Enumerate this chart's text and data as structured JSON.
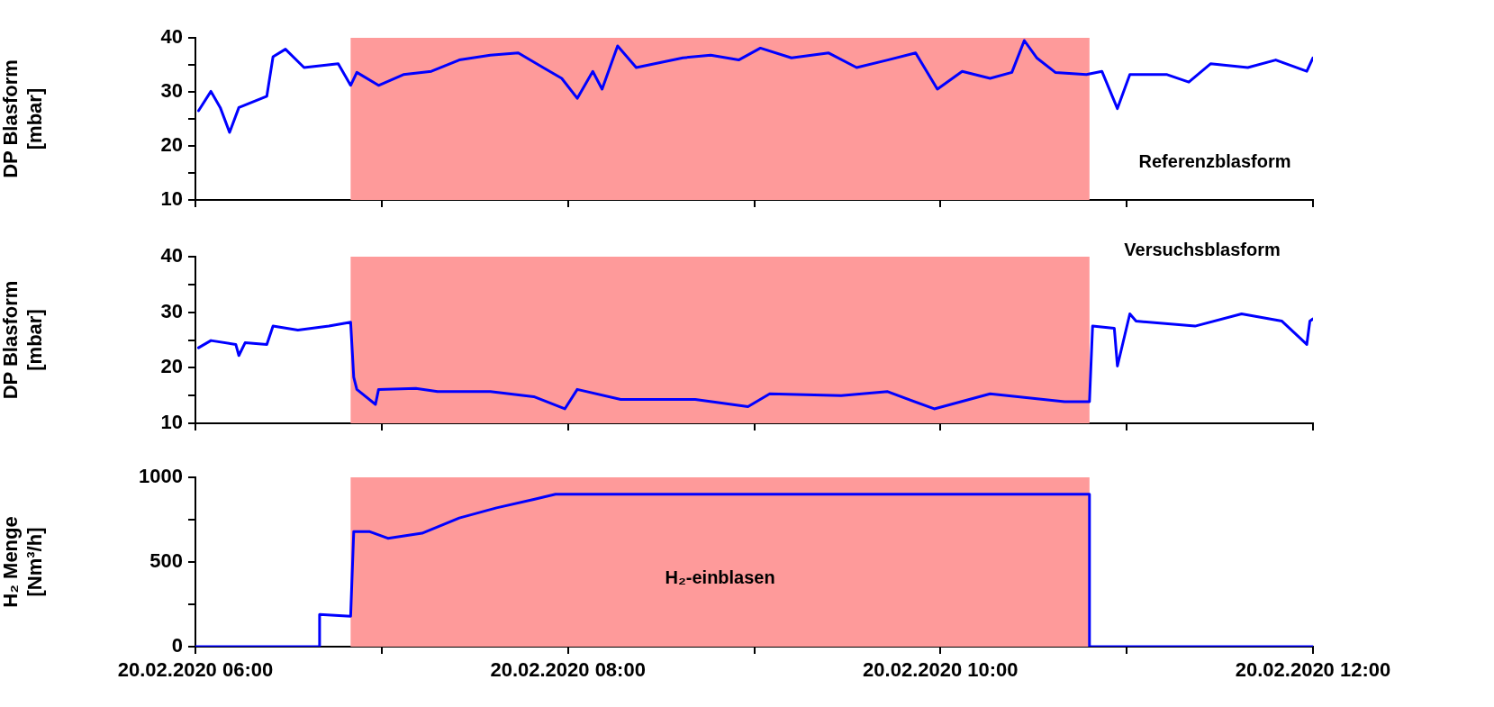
{
  "chart_data": [
    {
      "type": "line",
      "ylabel": "DP Blasform [mbar]",
      "xlim": [
        "2020-02-20T06:00",
        "2020-02-20T12:00"
      ],
      "ylim": [
        10,
        40
      ],
      "marker": "none",
      "grid": false,
      "legend": false,
      "tick_labels": "y",
      "xticks": [
        {
          "value": "2020-02-20T06:00",
          "label": null
        },
        {
          "value": "2020-02-20T07:00",
          "label": null
        },
        {
          "value": "2020-02-20T08:00",
          "label": null
        },
        {
          "value": "2020-02-20T09:00",
          "label": null
        },
        {
          "value": "2020-02-20T10:00",
          "label": null
        },
        {
          "value": "2020-02-20T11:00",
          "label": null
        },
        {
          "value": "2020-02-20T12:00",
          "label": null
        }
      ],
      "yticks": [
        10,
        {
          "value": 15,
          "label": null
        },
        20,
        {
          "value": 25,
          "label": null
        },
        30,
        {
          "value": 35,
          "label": null
        },
        40
      ],
      "bands": [
        {
          "axis": "x",
          "from": "2020-02-20T06:50",
          "to": "2020-02-20T10:48",
          "color": "#fe9a9a"
        }
      ],
      "series": [
        {
          "name": "Referenzblasform",
          "color": "#0000ff",
          "x": [
            "2020-02-20T06:01",
            "2020-02-20T06:05",
            "2020-02-20T06:08",
            "2020-02-20T06:11",
            "2020-02-20T06:14",
            "2020-02-20T06:23",
            "2020-02-20T06:25",
            "2020-02-20T06:29",
            "2020-02-20T06:35",
            "2020-02-20T06:46",
            "2020-02-20T06:50",
            "2020-02-20T06:52",
            "2020-02-20T06:59",
            "2020-02-20T07:07",
            "2020-02-20T07:16",
            "2020-02-20T07:25",
            "2020-02-20T07:35",
            "2020-02-20T07:44",
            "2020-02-20T07:52",
            "2020-02-20T07:58",
            "2020-02-20T08:03",
            "2020-02-20T08:08",
            "2020-02-20T08:11",
            "2020-02-20T08:16",
            "2020-02-20T08:22",
            "2020-02-20T08:37",
            "2020-02-20T08:46",
            "2020-02-20T08:55",
            "2020-02-20T09:02",
            "2020-02-20T09:12",
            "2020-02-20T09:24",
            "2020-02-20T09:33",
            "2020-02-20T09:43",
            "2020-02-20T09:52",
            "2020-02-20T09:59",
            "2020-02-20T10:07",
            "2020-02-20T10:16",
            "2020-02-20T10:23",
            "2020-02-20T10:27",
            "2020-02-20T10:31",
            "2020-02-20T10:37",
            "2020-02-20T10:47",
            "2020-02-20T10:52",
            "2020-02-20T10:57",
            "2020-02-20T11:01",
            "2020-02-20T11:13",
            "2020-02-20T11:20",
            "2020-02-20T11:27",
            "2020-02-20T11:39",
            "2020-02-20T11:48",
            "2020-02-20T11:58",
            "2020-02-20T12:00"
          ],
          "values": [
            26.5,
            30.1,
            27.1,
            22.5,
            27.1,
            29.2,
            36.5,
            37.9,
            34.5,
            35.2,
            31.2,
            33.6,
            31.2,
            33.2,
            33.8,
            35.9,
            36.8,
            37.2,
            34.5,
            32.5,
            28.8,
            33.8,
            30.5,
            38.5,
            34.5,
            36.3,
            36.8,
            35.9,
            38.1,
            36.3,
            37.2,
            34.5,
            35.9,
            37.2,
            30.5,
            33.8,
            32.5,
            33.6,
            39.5,
            36.3,
            33.6,
            33.2,
            33.8,
            26.9,
            33.2,
            33.2,
            31.8,
            35.2,
            34.5,
            35.9,
            33.8,
            36.3
          ]
        }
      ]
    },
    {
      "type": "line",
      "ylabel": "DP Blasform [mbar]",
      "xlim": [
        "2020-02-20T06:00",
        "2020-02-20T12:00"
      ],
      "ylim": [
        10,
        40
      ],
      "marker": "none",
      "grid": false,
      "legend": false,
      "tick_labels": "y",
      "xticks": [
        {
          "value": "2020-02-20T06:00",
          "label": null
        },
        {
          "value": "2020-02-20T07:00",
          "label": null
        },
        {
          "value": "2020-02-20T08:00",
          "label": null
        },
        {
          "value": "2020-02-20T09:00",
          "label": null
        },
        {
          "value": "2020-02-20T10:00",
          "label": null
        },
        {
          "value": "2020-02-20T11:00",
          "label": null
        },
        {
          "value": "2020-02-20T12:00",
          "label": null
        }
      ],
      "yticks": [
        10,
        {
          "value": 15,
          "label": null
        },
        20,
        {
          "value": 25,
          "label": null
        },
        30,
        {
          "value": 35,
          "label": null
        },
        40
      ],
      "bands": [
        {
          "axis": "x",
          "from": "2020-02-20T06:50",
          "to": "2020-02-20T10:48",
          "color": "#fe9a9a"
        }
      ],
      "series": [
        {
          "name": "Versuchsblasform",
          "color": "#0000ff",
          "x": [
            "2020-02-20T06:01",
            "2020-02-20T06:05",
            "2020-02-20T06:13",
            "2020-02-20T06:14",
            "2020-02-20T06:16",
            "2020-02-20T06:23",
            "2020-02-20T06:25",
            "2020-02-20T06:33",
            "2020-02-20T06:43",
            "2020-02-20T06:50",
            "2020-02-20T06:51",
            "2020-02-20T06:52",
            "2020-02-20T06:58",
            "2020-02-20T06:59",
            "2020-02-20T07:11",
            "2020-02-20T07:18",
            "2020-02-20T07:35",
            "2020-02-20T07:49",
            "2020-02-20T07:59",
            "2020-02-20T08:03",
            "2020-02-20T08:17",
            "2020-02-20T08:41",
            "2020-02-20T08:58",
            "2020-02-20T09:05",
            "2020-02-20T09:28",
            "2020-02-20T09:43",
            "2020-02-20T09:58",
            "2020-02-20T10:16",
            "2020-02-20T10:40",
            "2020-02-20T10:48",
            "2020-02-20T10:49",
            "2020-02-20T10:56",
            "2020-02-20T10:57",
            "2020-02-20T11:01",
            "2020-02-20T11:03",
            "2020-02-20T11:22",
            "2020-02-20T11:37",
            "2020-02-20T11:50",
            "2020-02-20T11:58",
            "2020-02-20T11:59",
            "2020-02-20T12:00"
          ],
          "values": [
            23.6,
            24.9,
            24.2,
            22.2,
            24.5,
            24.2,
            27.5,
            26.8,
            27.5,
            28.2,
            18.3,
            16.1,
            13.4,
            16.1,
            16.3,
            15.7,
            15.7,
            14.8,
            12.6,
            16.1,
            14.3,
            14.3,
            13.0,
            15.3,
            15.0,
            15.7,
            12.6,
            15.3,
            13.9,
            13.9,
            27.5,
            27.1,
            20.3,
            29.7,
            28.4,
            27.5,
            29.7,
            28.4,
            24.2,
            28.4,
            28.8
          ]
        }
      ]
    },
    {
      "type": "line",
      "ylabel": "H₂ Menge [Nm³/h]",
      "xlim": [
        "2020-02-20T06:00",
        "2020-02-20T12:00"
      ],
      "ylim": [
        0,
        1000
      ],
      "marker": "none",
      "grid": false,
      "legend": false,
      "xticks": [
        {
          "value": "2020-02-20T06:00",
          "label": "20.02.2020 06:00"
        },
        {
          "value": "2020-02-20T07:00",
          "label": null
        },
        {
          "value": "2020-02-20T08:00",
          "label": "20.02.2020 08:00"
        },
        {
          "value": "2020-02-20T09:00",
          "label": null
        },
        {
          "value": "2020-02-20T10:00",
          "label": "20.02.2020 10:00"
        },
        {
          "value": "2020-02-20T11:00",
          "label": null
        },
        {
          "value": "2020-02-20T12:00",
          "label": "20.02.2020 12:00"
        }
      ],
      "yticks": [
        0,
        {
          "value": 250,
          "label": null
        },
        500,
        {
          "value": 750,
          "label": null
        },
        1000
      ],
      "bands": [
        {
          "axis": "x",
          "from": "2020-02-20T06:50",
          "to": "2020-02-20T10:48",
          "color": "#fe9a9a",
          "label": "H₂-einblasen"
        }
      ],
      "series": [
        {
          "color": "#0000ff",
          "x": [
            "2020-02-20T06:00",
            "2020-02-20T06:40",
            "2020-02-20T06:40",
            "2020-02-20T06:50",
            "2020-02-20T06:51",
            "2020-02-20T06:56",
            "2020-02-20T07:02",
            "2020-02-20T07:13",
            "2020-02-20T07:25",
            "2020-02-20T07:37",
            "2020-02-20T07:49",
            "2020-02-20T07:56",
            "2020-02-20T08:41",
            "2020-02-20T09:52",
            "2020-02-20T10:48",
            "2020-02-20T10:48",
            "2020-02-20T12:00"
          ],
          "values": [
            0,
            0,
            190,
            180,
            680,
            680,
            640,
            670,
            760,
            820,
            870,
            900,
            900,
            900,
            900,
            0,
            0
          ]
        }
      ]
    }
  ]
}
